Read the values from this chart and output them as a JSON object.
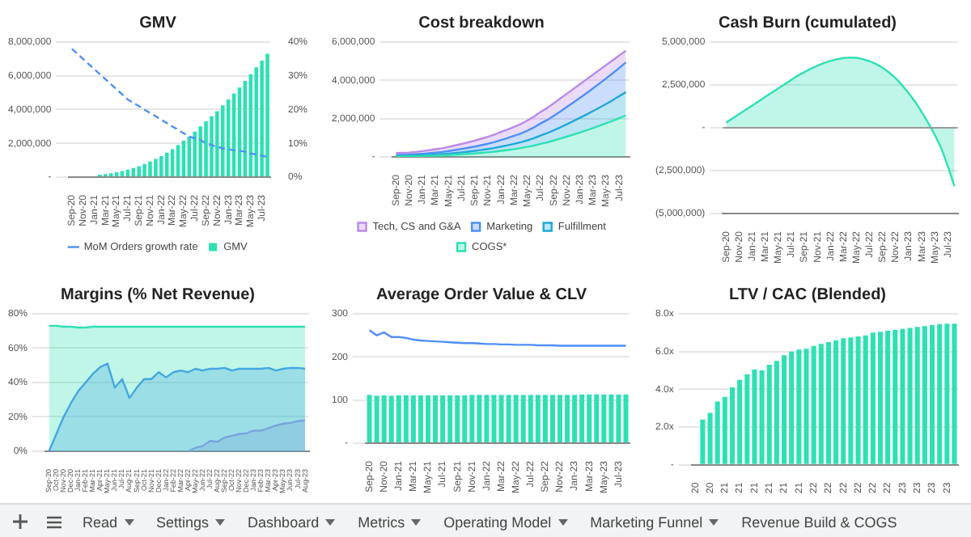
{
  "chart_data": [
    {
      "type": "bar",
      "title": "GMV",
      "categories": [
        "Sep-20",
        null,
        "Nov-20",
        null,
        "Jan-21",
        null,
        "Mar-21",
        null,
        "May-21",
        null,
        "Jul-21",
        null,
        "Sep-21",
        null,
        "Nov-21",
        null,
        "Jan-22",
        null,
        "Mar-22",
        null,
        "May-22",
        null,
        "Jul-22",
        null,
        "Sep-22",
        null,
        "Nov-22",
        null,
        "Jan-23",
        null,
        "Mar-23",
        null,
        "May-23",
        null,
        "Jul-23",
        null
      ],
      "series": [
        {
          "name": "GMV",
          "type": "bar",
          "color": "#2ee0b4",
          "values": [
            null,
            null,
            45000,
            null,
            null,
            140000,
            180000,
            230000,
            290000,
            360000,
            440000,
            540000,
            650000,
            780000,
            920000,
            1080000,
            1250000,
            1450000,
            1650000,
            1900000,
            2150000,
            2400000,
            2700000,
            3000000,
            3300000,
            3600000,
            3900000,
            4250000,
            4600000,
            4950000,
            5300000,
            5700000,
            6100000,
            6500000,
            6900000,
            7300000
          ]
        },
        {
          "name": "MoM Orders growth rate",
          "type": "line",
          "axis": "y2",
          "line_style": "dashed",
          "color": "#4f8ff7",
          "values": [
            38,
            36.5,
            35,
            33.5,
            32,
            30.5,
            29,
            27.5,
            26,
            24.5,
            23,
            22,
            21,
            20,
            19,
            18,
            17,
            16,
            15,
            14,
            13,
            12,
            11.5,
            11,
            10,
            9.5,
            9,
            8.5,
            8.2,
            8,
            7.8,
            7.5,
            7,
            6.7,
            6.3,
            6
          ]
        }
      ],
      "ylim": [
        0,
        8000000
      ],
      "yticks": [
        {
          "value": 0,
          "label": "-"
        },
        {
          "value": 2000000,
          "label": "2,000,000"
        },
        {
          "value": 4000000,
          "label": "4,000,000"
        },
        {
          "value": 6000000,
          "label": "6,000,000"
        },
        {
          "value": 8000000,
          "label": "8,000,000"
        }
      ],
      "y2lim": [
        0,
        40
      ],
      "y2ticks": [
        {
          "value": 0,
          "label": "0%"
        },
        {
          "value": 10,
          "label": "10%"
        },
        {
          "value": 20,
          "label": "20%"
        },
        {
          "value": 30,
          "label": "30%"
        },
        {
          "value": 40,
          "label": "40%"
        }
      ],
      "grid": "y",
      "legend": "bottom",
      "marker": "none"
    },
    {
      "type": "area",
      "title": "Cost breakdown",
      "stacked": true,
      "categories": [
        "Sep-20",
        null,
        "Nov-20",
        null,
        "Jan-21",
        null,
        "Mar-21",
        null,
        "May-21",
        null,
        "Jul-21",
        null,
        "Sep-21",
        null,
        "Nov-21",
        null,
        "Jan-22",
        null,
        "Mar-22",
        null,
        "May-22",
        null,
        "Jul-22",
        null,
        "Sep-22",
        null,
        "Nov-22",
        null,
        "Jan-23",
        null,
        "Mar-23",
        null,
        "May-23",
        null,
        "Jul-23",
        null
      ],
      "series": [
        {
          "name": "COGS*",
          "color": "#2ee0b4",
          "values": [
            24000,
            27000,
            30000,
            37000,
            45000,
            56000,
            66000,
            78000,
            95000,
            113000,
            134000,
            156000,
            180000,
            209000,
            239000,
            276000,
            316000,
            359000,
            407000,
            458000,
            521000,
            592000,
            679000,
            757000,
            854000,
            955000,
            1056000,
            1164000,
            1277000,
            1389000,
            1509000,
            1633000,
            1757000,
            1889000,
            2025000,
            2165000
          ]
        },
        {
          "name": "Fulfillment",
          "color": "#1fa8d8",
          "values": [
            26000,
            27000,
            30000,
            36000,
            42000,
            49000,
            59000,
            67000,
            77000,
            92000,
            105000,
            120000,
            137000,
            155000,
            174000,
            195000,
            222000,
            247000,
            276000,
            307000,
            344000,
            384000,
            437000,
            479000,
            532000,
            585000,
            650000,
            707000,
            764000,
            826000,
            886000,
            947000,
            1013000,
            1075000,
            1149000,
            1220000
          ]
        },
        {
          "name": "Marketing",
          "color": "#4f8ff7",
          "values": [
            50000,
            53000,
            55000,
            66000,
            76000,
            89000,
            102000,
            115000,
            134000,
            155000,
            176000,
            197000,
            221000,
            248000,
            275000,
            308000,
            343000,
            379000,
            416000,
            458000,
            507000,
            563000,
            632000,
            689000,
            759000,
            830000,
            898000,
            969000,
            1041000,
            1114000,
            1187000,
            1260000,
            1334000,
            1409000,
            1479000,
            1554000
          ]
        },
        {
          "name": "Tech, CS and G&A",
          "color": "#b98ae8",
          "values": [
            100000,
            103000,
            105000,
            121000,
            137000,
            156000,
            173000,
            190000,
            214000,
            240000,
            265000,
            287000,
            312000,
            338000,
            362000,
            391000,
            419000,
            445000,
            471000,
            497000,
            528000,
            561000,
            602000,
            625000,
            655000,
            680000,
            696000,
            710000,
            718000,
            721000,
            718000,
            710000,
            696000,
            677000,
            647000,
            611000
          ]
        }
      ],
      "ylim": [
        0,
        6000000
      ],
      "yticks": [
        {
          "value": 0,
          "label": "-"
        },
        {
          "value": 2000000,
          "label": "2,000,000"
        },
        {
          "value": 4000000,
          "label": "4,000,000"
        },
        {
          "value": 6000000,
          "label": "6,000,000"
        }
      ],
      "grid": "y",
      "legend": "bottom",
      "marker": "none"
    },
    {
      "type": "area",
      "title": "Cash Burn (cumulated)",
      "categories": [
        "Sep-20",
        null,
        "Nov-20",
        null,
        "Jan-21",
        null,
        "Mar-21",
        null,
        "May-21",
        null,
        "Jul-21",
        null,
        "Sep-21",
        null,
        "Nov-21",
        null,
        "Jan-22",
        null,
        "Mar-22",
        null,
        "May-22",
        null,
        "Jul-22",
        null,
        "Sep-22",
        null,
        "Nov-22",
        null,
        "Jan-23",
        null,
        "Mar-23",
        null,
        "May-23",
        null,
        "Jul-23",
        null
      ],
      "color": "#2ee0b4",
      "values": [
        300000,
        550000,
        800000,
        1050000,
        1300000,
        1550000,
        1800000,
        2050000,
        2300000,
        2550000,
        2800000,
        3050000,
        3250000,
        3450000,
        3620000,
        3780000,
        3900000,
        4000000,
        4070000,
        4100000,
        4080000,
        4000000,
        3880000,
        3720000,
        3500000,
        3220000,
        2880000,
        2480000,
        2020000,
        1500000,
        920000,
        280000,
        -420000,
        -1200000,
        -2250000,
        -3400000
      ],
      "ylim": [
        -5000000,
        5000000
      ],
      "yticks": [
        {
          "value": -5000000,
          "label": "(5,000,000)"
        },
        {
          "value": -2500000,
          "label": "(2,500,000)"
        },
        {
          "value": 0,
          "label": "-"
        },
        {
          "value": 2500000,
          "label": "2,500,000"
        },
        {
          "value": 5000000,
          "label": "5,000,000"
        }
      ],
      "ref_lines": [
        {
          "axis": "y",
          "value": 0,
          "color": "#999999"
        }
      ],
      "grid": "y",
      "marker": "none"
    },
    {
      "type": "area",
      "title": "Margins (% Net Revenue)",
      "categories": [
        "Sep-20",
        "Oct-20",
        "Nov-20",
        "Dec-20",
        "Jan-21",
        "Feb-21",
        "Mar-21",
        "Apr-21",
        "May-21",
        "Jun-21",
        "Jul-21",
        "Aug-21",
        "Sep-21",
        "Oct-21",
        "Nov-21",
        "Dec-21",
        "Jan-22",
        "Feb-22",
        "Mar-22",
        "Apr-22",
        "May-22",
        "Jun-22",
        "Jul-22",
        "Aug-22",
        "Sep-22",
        "Oct-22",
        "Nov-22",
        "Dec-22",
        "Jan-23",
        "Feb-23",
        "Mar-23",
        "Apr-23",
        "May-23",
        "Jun-23",
        "Jul-23",
        "Aug-23"
      ],
      "series": [
        {
          "color": "#2ee0b4",
          "values": [
            73,
            73,
            72.5,
            72.5,
            72,
            72,
            72.5,
            72.5,
            72.5,
            72.5,
            72.5,
            72.5,
            72.5,
            72.5,
            72.5,
            72.5,
            72.5,
            72.5,
            72.5,
            72.5,
            72.5,
            72.5,
            72.5,
            72.5,
            72.5,
            72.5,
            72.5,
            72.5,
            72.5,
            72.5,
            72.5,
            72.5,
            72.5,
            72.5,
            72.5,
            72.5
          ]
        },
        {
          "color": "#4f8ff7",
          "values": [
            0,
            10,
            20,
            28,
            35,
            40,
            45,
            49,
            51,
            37,
            42,
            31,
            37,
            42,
            42,
            46,
            43,
            46,
            47,
            46,
            48,
            47,
            48,
            48,
            48.5,
            47,
            48,
            48,
            48,
            48,
            48.5,
            47,
            48,
            48.5,
            48.5,
            48
          ]
        },
        {
          "color": "#b98ae8",
          "values": [
            null,
            null,
            null,
            null,
            null,
            null,
            null,
            null,
            null,
            null,
            null,
            null,
            null,
            null,
            null,
            null,
            null,
            null,
            null,
            0,
            2,
            3,
            6,
            5.5,
            8,
            9,
            10,
            10.5,
            12,
            12,
            13.5,
            15,
            16,
            16.5,
            17.5,
            18
          ]
        }
      ],
      "ylim": [
        0,
        80
      ],
      "yticks": [
        {
          "value": 0,
          "label": "0%"
        },
        {
          "value": 20,
          "label": "20%"
        },
        {
          "value": 40,
          "label": "40%"
        },
        {
          "value": 60,
          "label": "60%"
        },
        {
          "value": 80,
          "label": "80%"
        }
      ],
      "grid": "y",
      "marker": "none"
    },
    {
      "type": "bar",
      "title": "Average Order Value & CLV",
      "categories": [
        "Sep-20",
        null,
        "Nov-20",
        null,
        "Jan-21",
        null,
        "Mar-21",
        null,
        "May-21",
        null,
        "Jul-21",
        null,
        "Sep-21",
        null,
        "Nov-21",
        null,
        "Jan-22",
        null,
        "Mar-22",
        null,
        "May-22",
        null,
        "Jul-22",
        null,
        "Sep-22",
        null,
        "Nov-22",
        null,
        "Jan-23",
        null,
        "Mar-23",
        null,
        "May-23",
        null,
        "Jul-23",
        null
      ],
      "series": [
        {
          "type": "bar",
          "color": "#2ee0b4",
          "values": [
            112,
            110,
            111,
            110,
            111,
            111,
            111,
            111,
            111,
            111,
            111,
            111,
            111,
            111,
            112,
            112,
            112,
            112,
            112,
            112,
            112,
            112,
            112,
            112,
            112,
            112,
            112,
            112,
            112,
            113,
            113,
            113,
            113,
            113,
            113,
            113
          ]
        },
        {
          "type": "line",
          "color": "#4f8ff7",
          "values": [
            262,
            250,
            257,
            246,
            246,
            244,
            240,
            238,
            237,
            236,
            235,
            234,
            233,
            232,
            232,
            231,
            230,
            230,
            229,
            229,
            228,
            228,
            228,
            227,
            227,
            227,
            226,
            226,
            226,
            226,
            226,
            226,
            226,
            226,
            226,
            226
          ]
        }
      ],
      "ylim": [
        0,
        300
      ],
      "yticks": [
        {
          "value": 0,
          "label": "-"
        },
        100,
        200,
        300
      ],
      "grid": "y",
      "marker": "none"
    },
    {
      "type": "bar",
      "title": "LTV / CAC (Blended)",
      "categories": [
        "20",
        null,
        "20",
        null,
        "21",
        null,
        "21",
        null,
        "21",
        null,
        "21",
        null,
        "21",
        null,
        "21",
        null,
        "22",
        null,
        "22",
        null,
        "22",
        null,
        "22",
        null,
        "22",
        null,
        "22",
        null,
        "23",
        null,
        "23",
        null,
        "23",
        null,
        "23",
        null
      ],
      "color": "#2ee0b4",
      "values": [
        null,
        2.4,
        2.75,
        3.35,
        3.6,
        4.1,
        4.5,
        4.8,
        5.05,
        5.0,
        5.3,
        5.5,
        5.8,
        6.0,
        6.1,
        6.15,
        6.3,
        6.4,
        6.5,
        6.6,
        6.7,
        6.75,
        6.8,
        6.85,
        7.0,
        7.05,
        7.1,
        7.15,
        7.2,
        7.25,
        7.3,
        7.35,
        7.4,
        7.45,
        7.48,
        7.48
      ],
      "ylim": [
        0,
        8
      ],
      "yticks": [
        {
          "value": 0,
          "label": "-"
        },
        {
          "value": 2,
          "label": "2.0x"
        },
        {
          "value": 4,
          "label": "4.0x"
        },
        {
          "value": 6,
          "label": "6.0x"
        },
        {
          "value": 8,
          "label": "8.0x"
        }
      ],
      "grid": "y"
    },
    {
      "type": "other",
      "annotations": [
        "Read",
        "Settings",
        "Dashboard",
        "Metrics",
        "Operating Model",
        "Marketing Funnel",
        "Revenue Build & COGS"
      ]
    }
  ]
}
